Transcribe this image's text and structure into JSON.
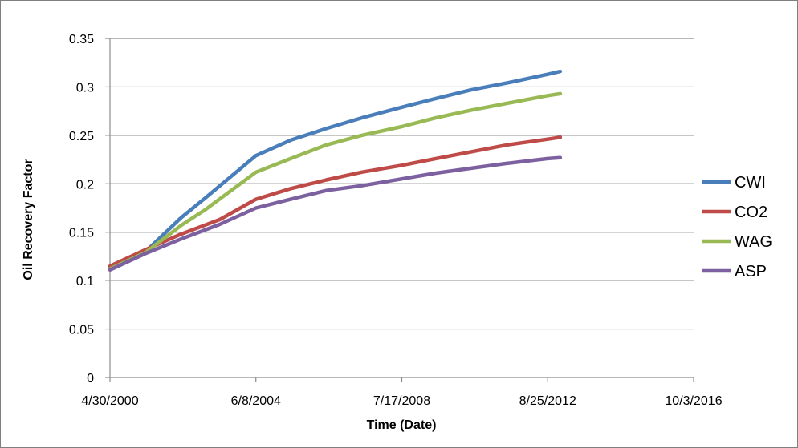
{
  "chart_data": {
    "type": "line",
    "xlabel": "Time (Date)",
    "ylabel": "Oil Recovery Factor",
    "x_ticks": [
      "4/30/2000",
      "6/8/2004",
      "7/17/2008",
      "8/25/2012",
      "10/3/2016"
    ],
    "y_ticks": [
      "0",
      "0.05",
      "0.1",
      "0.15",
      "0.2",
      "0.25",
      "0.3",
      "0.35"
    ],
    "xlim": [
      "2000-04-30",
      "2016-10-03"
    ],
    "ylim": [
      0,
      0.35
    ],
    "grid": "horizontal",
    "legend": "right",
    "series": [
      {
        "name": "CWI",
        "color": "#4a7ebb",
        "points": [
          [
            "2000-04-30",
            0.113
          ],
          [
            "2001-05-01",
            0.13
          ],
          [
            "2002-05-01",
            0.165
          ],
          [
            "2003-01-01",
            0.185
          ],
          [
            "2004-06-08",
            0.229
          ],
          [
            "2005-06-01",
            0.245
          ],
          [
            "2006-06-01",
            0.257
          ],
          [
            "2007-06-01",
            0.268
          ],
          [
            "2008-07-17",
            0.279
          ],
          [
            "2009-07-01",
            0.288
          ],
          [
            "2010-07-01",
            0.297
          ],
          [
            "2011-07-01",
            0.304
          ],
          [
            "2012-08-25",
            0.313
          ],
          [
            "2013-01-01",
            0.316
          ]
        ]
      },
      {
        "name": "CO2",
        "color": "#be4b48",
        "points": [
          [
            "2000-04-30",
            0.115
          ],
          [
            "2001-05-01",
            0.132
          ],
          [
            "2002-05-01",
            0.148
          ],
          [
            "2003-06-01",
            0.163
          ],
          [
            "2004-06-08",
            0.184
          ],
          [
            "2005-06-01",
            0.195
          ],
          [
            "2006-06-01",
            0.204
          ],
          [
            "2007-06-01",
            0.212
          ],
          [
            "2008-07-17",
            0.219
          ],
          [
            "2009-07-01",
            0.226
          ],
          [
            "2010-07-01",
            0.233
          ],
          [
            "2011-07-01",
            0.24
          ],
          [
            "2012-08-25",
            0.246
          ],
          [
            "2013-01-01",
            0.248
          ]
        ]
      },
      {
        "name": "WAG",
        "color": "#98b954",
        "points": [
          [
            "2000-04-30",
            0.112
          ],
          [
            "2001-05-01",
            0.129
          ],
          [
            "2002-05-01",
            0.157
          ],
          [
            "2003-01-01",
            0.173
          ],
          [
            "2004-06-08",
            0.212
          ],
          [
            "2005-06-01",
            0.226
          ],
          [
            "2006-06-01",
            0.24
          ],
          [
            "2007-06-01",
            0.25
          ],
          [
            "2008-07-17",
            0.259
          ],
          [
            "2009-07-01",
            0.268
          ],
          [
            "2010-07-01",
            0.276
          ],
          [
            "2011-07-01",
            0.283
          ],
          [
            "2012-08-25",
            0.291
          ],
          [
            "2013-01-01",
            0.293
          ]
        ]
      },
      {
        "name": "ASP",
        "color": "#7d60a0",
        "points": [
          [
            "2000-04-30",
            0.111
          ],
          [
            "2001-05-01",
            0.128
          ],
          [
            "2002-05-01",
            0.143
          ],
          [
            "2003-06-01",
            0.158
          ],
          [
            "2004-06-08",
            0.175
          ],
          [
            "2005-06-01",
            0.184
          ],
          [
            "2006-06-01",
            0.193
          ],
          [
            "2007-06-01",
            0.198
          ],
          [
            "2008-07-17",
            0.205
          ],
          [
            "2009-07-01",
            0.211
          ],
          [
            "2010-07-01",
            0.216
          ],
          [
            "2011-07-01",
            0.221
          ],
          [
            "2012-08-25",
            0.226
          ],
          [
            "2013-01-01",
            0.227
          ]
        ]
      }
    ]
  }
}
